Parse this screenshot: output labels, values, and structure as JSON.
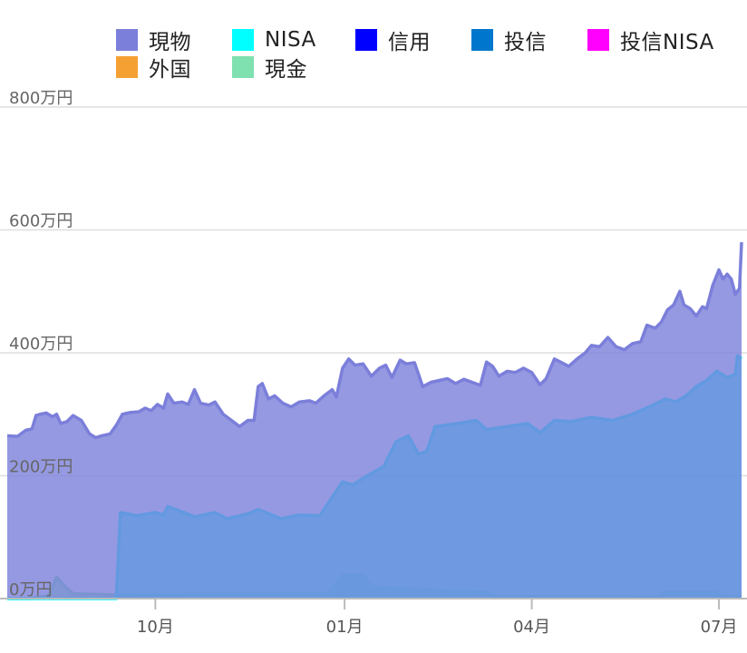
{
  "chart_data": {
    "type": "area",
    "stacked": true,
    "grid": true,
    "legend_position": "top",
    "ylim": [
      0,
      800
    ],
    "y_ticks": [
      {
        "value": 0,
        "label": "0万円"
      },
      {
        "value": 200,
        "label": "200万円"
      },
      {
        "value": 400,
        "label": "400万円"
      },
      {
        "value": 600,
        "label": "600万円"
      },
      {
        "value": 800,
        "label": "800万円"
      }
    ],
    "x_ticks": [
      {
        "date": "2023-10-01",
        "label": "10月"
      },
      {
        "date": "2024-01-01",
        "label": "01月"
      },
      {
        "date": "2024-04-01",
        "label": "04月"
      },
      {
        "date": "2024-07-01",
        "label": "07月"
      }
    ],
    "x_range": [
      "2023-07-21",
      "2024-07-12"
    ],
    "legend": [
      {
        "name": "現物",
        "color": "#7b7fda"
      },
      {
        "name": "NISA",
        "color": "#00ffff"
      },
      {
        "name": "信用",
        "color": "#0000ff"
      },
      {
        "name": "投信",
        "color": "#0077cc"
      },
      {
        "name": "投信NISA",
        "color": "#ff00ff"
      },
      {
        "name": "外国",
        "color": "#f5a032"
      },
      {
        "name": "現金",
        "color": "#7fe0b0"
      }
    ],
    "series": [
      {
        "name": "現金",
        "color": "#7fe0b0",
        "points": [
          [
            "2023-07-21",
            0
          ],
          [
            "2023-08-01",
            0
          ],
          [
            "2023-08-10",
            5
          ],
          [
            "2023-08-14",
            35
          ],
          [
            "2023-08-18",
            20
          ],
          [
            "2023-08-22",
            8
          ],
          [
            "2023-09-10",
            6
          ],
          [
            "2023-12-24",
            8
          ],
          [
            "2023-12-31",
            38
          ],
          [
            "2024-01-10",
            38
          ],
          [
            "2024-01-14",
            18
          ],
          [
            "2024-02-10",
            15
          ],
          [
            "2024-02-20",
            12
          ],
          [
            "2024-03-10",
            10
          ],
          [
            "2024-03-15",
            3
          ],
          [
            "2024-06-01",
            2
          ],
          [
            "2024-06-05",
            10
          ],
          [
            "2024-06-30",
            10
          ],
          [
            "2024-07-03",
            3
          ],
          [
            "2024-07-12",
            3
          ]
        ]
      },
      {
        "name": "NISA",
        "color": "#00ffff",
        "points": [
          [
            "2023-07-21",
            0
          ],
          [
            "2023-09-12",
            0
          ],
          [
            "2023-09-14",
            140
          ],
          [
            "2023-09-22",
            135
          ],
          [
            "2023-10-01",
            140
          ],
          [
            "2023-10-05",
            136
          ],
          [
            "2023-10-07",
            150
          ],
          [
            "2023-10-15",
            140
          ],
          [
            "2023-10-20",
            133
          ],
          [
            "2023-10-30",
            140
          ],
          [
            "2023-11-05",
            130
          ],
          [
            "2023-11-15",
            138
          ],
          [
            "2023-11-20",
            145
          ],
          [
            "2023-12-01",
            130
          ],
          [
            "2023-12-10",
            136
          ],
          [
            "2023-12-20",
            135
          ],
          [
            "2023-12-26",
            165
          ],
          [
            "2023-12-31",
            190
          ],
          [
            "2024-01-05",
            185
          ],
          [
            "2024-01-12",
            200
          ],
          [
            "2024-01-20",
            215
          ],
          [
            "2024-01-26",
            255
          ],
          [
            "2024-02-01",
            265
          ],
          [
            "2024-02-06",
            235
          ],
          [
            "2024-02-10",
            240
          ],
          [
            "2024-02-14",
            280
          ],
          [
            "2024-02-25",
            285
          ],
          [
            "2024-03-05",
            290
          ],
          [
            "2024-03-10",
            275
          ],
          [
            "2024-03-20",
            280
          ],
          [
            "2024-03-30",
            285
          ],
          [
            "2024-04-05",
            270
          ],
          [
            "2024-04-12",
            290
          ],
          [
            "2024-04-20",
            288
          ],
          [
            "2024-04-30",
            295
          ],
          [
            "2024-05-10",
            290
          ],
          [
            "2024-05-20",
            300
          ],
          [
            "2024-05-30",
            315
          ],
          [
            "2024-06-05",
            325
          ],
          [
            "2024-06-10",
            320
          ],
          [
            "2024-06-15",
            330
          ],
          [
            "2024-06-20",
            345
          ],
          [
            "2024-06-25",
            355
          ],
          [
            "2024-06-30",
            370
          ],
          [
            "2024-07-05",
            360
          ],
          [
            "2024-07-09",
            365
          ],
          [
            "2024-07-10",
            395
          ],
          [
            "2024-07-12",
            390
          ]
        ]
      },
      {
        "name": "現物",
        "color": "#7b7fda",
        "points": [
          [
            "2023-07-21",
            265
          ],
          [
            "2023-07-26",
            264
          ],
          [
            "2023-07-30",
            274
          ],
          [
            "2023-08-02",
            276
          ],
          [
            "2023-08-04",
            298
          ],
          [
            "2023-08-06",
            300
          ],
          [
            "2023-08-09",
            302
          ],
          [
            "2023-08-12",
            296
          ],
          [
            "2023-08-14",
            300
          ],
          [
            "2023-08-16",
            285
          ],
          [
            "2023-08-19",
            288
          ],
          [
            "2023-08-22",
            298
          ],
          [
            "2023-08-26",
            290
          ],
          [
            "2023-08-30",
            268
          ],
          [
            "2023-09-02",
            262
          ],
          [
            "2023-09-05",
            265
          ],
          [
            "2023-09-09",
            268
          ],
          [
            "2023-09-12",
            282
          ],
          [
            "2023-09-15",
            300
          ],
          [
            "2023-09-19",
            303
          ],
          [
            "2023-09-23",
            304
          ],
          [
            "2023-09-26",
            310
          ],
          [
            "2023-09-29",
            306
          ],
          [
            "2023-10-02",
            316
          ],
          [
            "2023-10-05",
            310
          ],
          [
            "2023-10-07",
            333
          ],
          [
            "2023-10-10",
            318
          ],
          [
            "2023-10-14",
            320
          ],
          [
            "2023-10-17",
            316
          ],
          [
            "2023-10-20",
            340
          ],
          [
            "2023-10-23",
            318
          ],
          [
            "2023-10-27",
            315
          ],
          [
            "2023-10-30",
            320
          ],
          [
            "2023-11-03",
            300
          ],
          [
            "2023-11-07",
            290
          ],
          [
            "2023-11-11",
            280
          ],
          [
            "2023-11-15",
            290
          ],
          [
            "2023-11-18",
            290
          ],
          [
            "2023-11-20",
            345
          ],
          [
            "2023-11-22",
            350
          ],
          [
            "2023-11-25",
            325
          ],
          [
            "2023-11-28",
            330
          ],
          [
            "2023-12-02",
            318
          ],
          [
            "2023-12-06",
            312
          ],
          [
            "2023-12-10",
            320
          ],
          [
            "2023-12-15",
            322
          ],
          [
            "2023-12-18",
            318
          ],
          [
            "2023-12-22",
            330
          ],
          [
            "2023-12-26",
            340
          ],
          [
            "2023-12-28",
            328
          ],
          [
            "2023-12-31",
            375
          ],
          [
            "2024-01-03",
            390
          ],
          [
            "2024-01-06",
            380
          ],
          [
            "2024-01-10",
            382
          ],
          [
            "2024-01-14",
            362
          ],
          [
            "2024-01-18",
            375
          ],
          [
            "2024-01-21",
            380
          ],
          [
            "2024-01-24",
            360
          ],
          [
            "2024-01-28",
            388
          ],
          [
            "2024-01-31",
            382
          ],
          [
            "2024-02-04",
            384
          ],
          [
            "2024-02-08",
            345
          ],
          [
            "2024-02-12",
            352
          ],
          [
            "2024-02-16",
            355
          ],
          [
            "2024-02-20",
            358
          ],
          [
            "2024-02-24",
            350
          ],
          [
            "2024-02-28",
            357
          ],
          [
            "2024-03-03",
            352
          ],
          [
            "2024-03-07",
            347
          ],
          [
            "2024-03-10",
            385
          ],
          [
            "2024-03-13",
            378
          ],
          [
            "2024-03-16",
            362
          ],
          [
            "2024-03-20",
            370
          ],
          [
            "2024-03-24",
            368
          ],
          [
            "2024-03-28",
            375
          ],
          [
            "2024-04-01",
            368
          ],
          [
            "2024-04-05",
            348
          ],
          [
            "2024-04-08",
            358
          ],
          [
            "2024-04-12",
            390
          ],
          [
            "2024-04-15",
            385
          ],
          [
            "2024-04-19",
            378
          ],
          [
            "2024-04-23",
            390
          ],
          [
            "2024-04-27",
            400
          ],
          [
            "2024-04-30",
            412
          ],
          [
            "2024-05-04",
            410
          ],
          [
            "2024-05-08",
            425
          ],
          [
            "2024-05-12",
            410
          ],
          [
            "2024-05-16",
            405
          ],
          [
            "2024-05-20",
            415
          ],
          [
            "2024-05-24",
            418
          ],
          [
            "2024-05-27",
            445
          ],
          [
            "2024-05-31",
            440
          ],
          [
            "2024-06-03",
            450
          ],
          [
            "2024-06-06",
            470
          ],
          [
            "2024-06-09",
            478
          ],
          [
            "2024-06-12",
            500
          ],
          [
            "2024-06-14",
            478
          ],
          [
            "2024-06-17",
            472
          ],
          [
            "2024-06-20",
            460
          ],
          [
            "2024-06-23",
            475
          ],
          [
            "2024-06-25",
            472
          ],
          [
            "2024-06-28",
            510
          ],
          [
            "2024-07-01",
            535
          ],
          [
            "2024-07-03",
            520
          ],
          [
            "2024-07-05",
            528
          ],
          [
            "2024-07-07",
            520
          ],
          [
            "2024-07-09",
            495
          ],
          [
            "2024-07-11",
            505
          ],
          [
            "2024-07-12",
            580
          ]
        ]
      }
    ]
  }
}
